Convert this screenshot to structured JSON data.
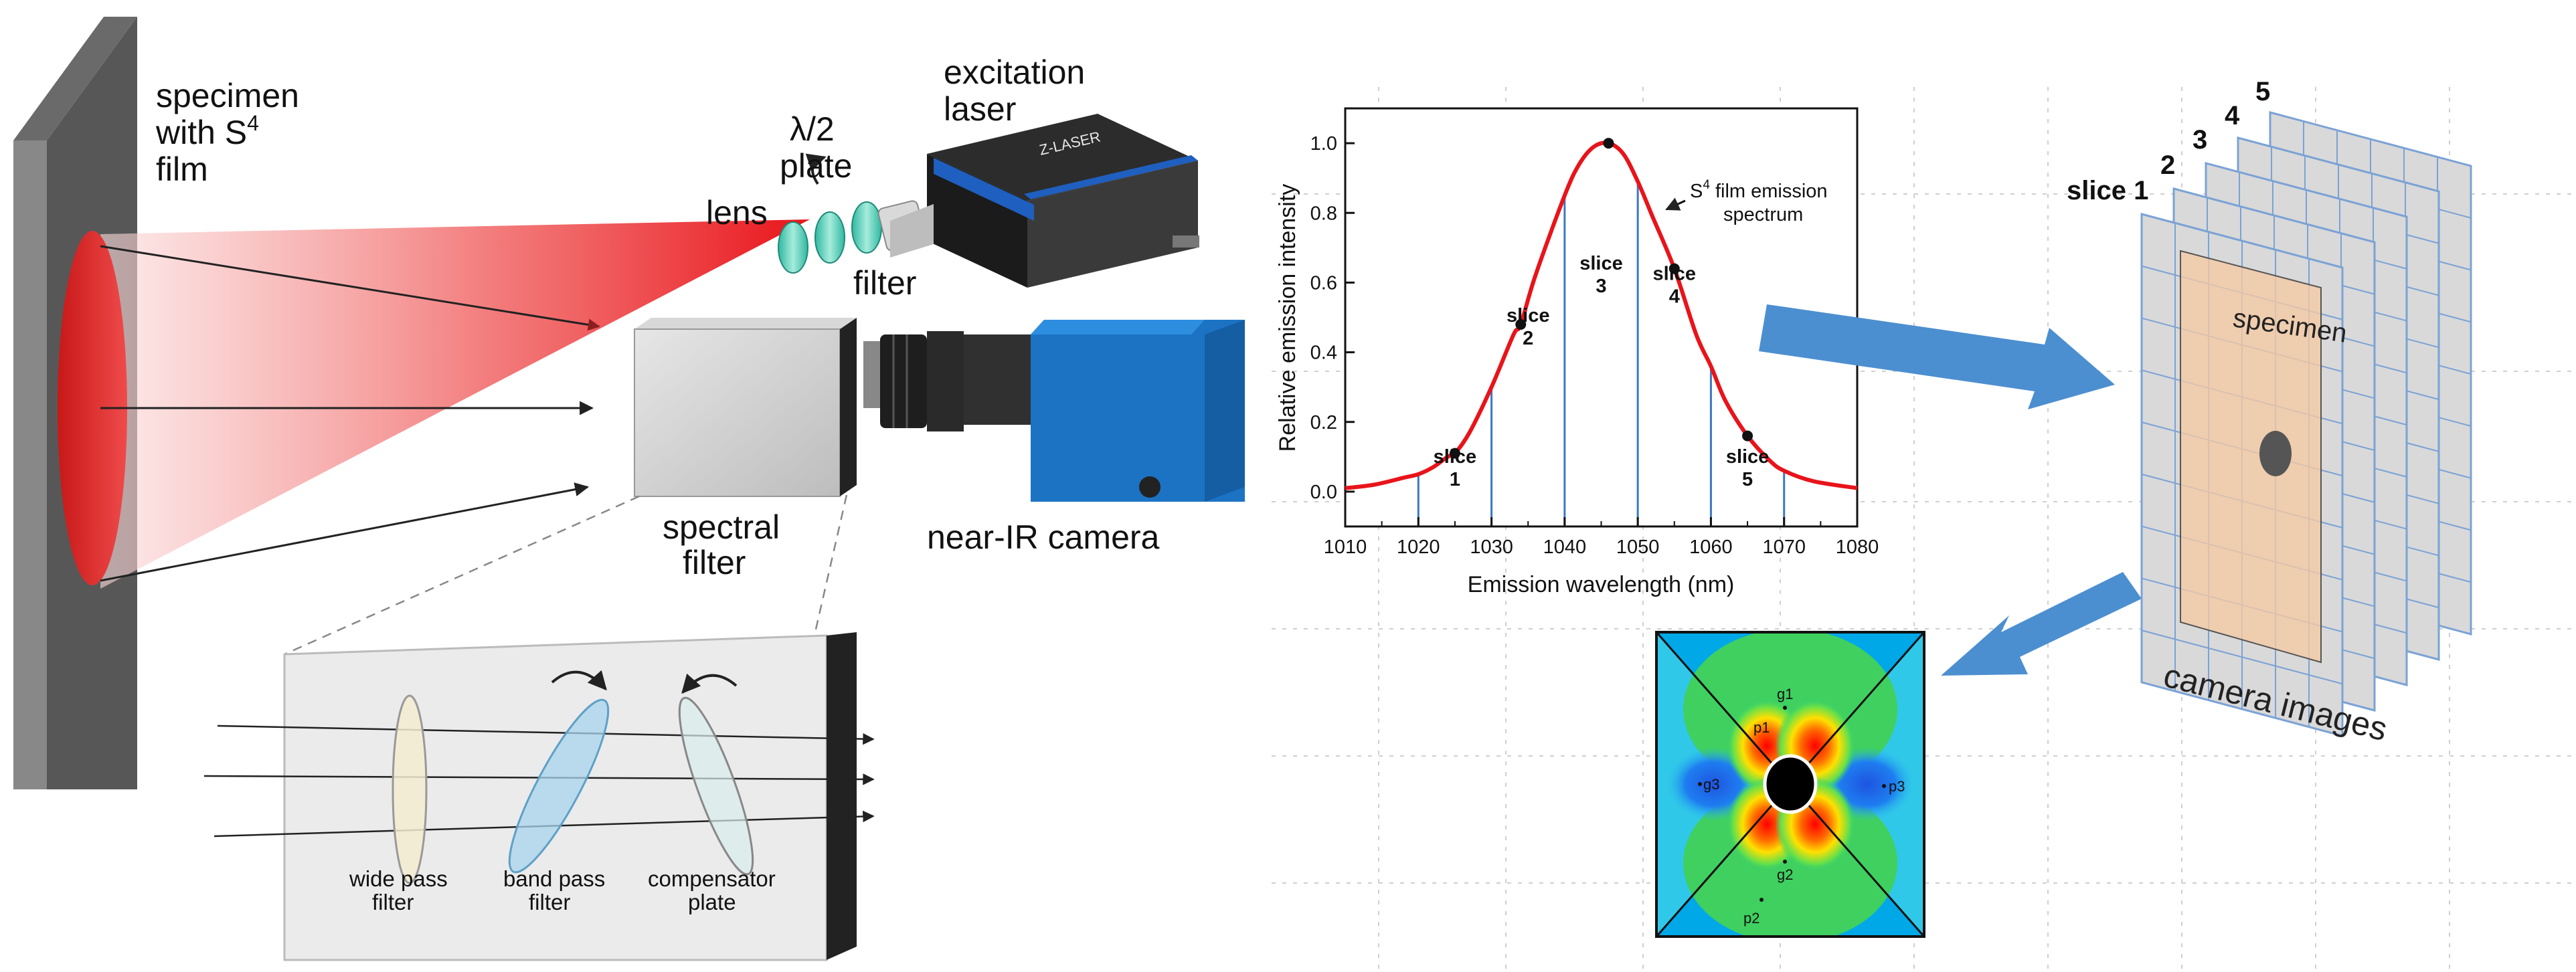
{
  "setup": {
    "specimen_line1": "specimen",
    "specimen_line2": "with S",
    "specimen_sup": "4",
    "specimen_line3": "film",
    "halfwave_line1": "λ/2",
    "halfwave_line2": "plate",
    "lens": "lens",
    "laser_line1": "excitation",
    "laser_line2": "laser",
    "filter": "filter",
    "spectral_line1": "spectral",
    "spectral_line2": "filter",
    "camera": "near-IR camera",
    "laser_brand": "Z-LASER"
  },
  "filter_box": {
    "wide_line1": "wide pass",
    "wide_line2": "filter",
    "band_line1": "band pass",
    "band_line2": "filter",
    "comp_line1": "compensator",
    "comp_line2": "plate"
  },
  "chart_data": {
    "type": "line",
    "title": "",
    "xlabel": "Emission wavelength (nm)",
    "ylabel": "Relative emission intensity",
    "xlim": [
      1010,
      1080
    ],
    "ylim": [
      -0.1,
      1.1
    ],
    "xticks": [
      1010,
      1020,
      1030,
      1040,
      1050,
      1060,
      1070,
      1080
    ],
    "yticks": [
      0.0,
      0.2,
      0.4,
      0.6,
      0.8,
      1.0
    ],
    "ytick_labels": [
      "0.0",
      "0.2",
      "0.4",
      "0.6",
      "0.8",
      "1.0"
    ],
    "series": [
      {
        "name": "S4 film emission spectrum",
        "color": "#e8141a",
        "x": [
          1010,
          1014,
          1018,
          1020,
          1022,
          1024,
          1025,
          1027,
          1030,
          1033,
          1034,
          1036,
          1040,
          1042,
          1044,
          1046,
          1048,
          1050,
          1052,
          1055,
          1058,
          1060,
          1062,
          1065,
          1068,
          1070,
          1074,
          1080
        ],
        "y": [
          0.01,
          0.02,
          0.04,
          0.05,
          0.07,
          0.1,
          0.11,
          0.17,
          0.3,
          0.45,
          0.48,
          0.62,
          0.85,
          0.94,
          0.99,
          1.0,
          0.97,
          0.89,
          0.79,
          0.64,
          0.45,
          0.36,
          0.26,
          0.16,
          0.09,
          0.06,
          0.03,
          0.01
        ]
      }
    ],
    "markers": [
      {
        "x": 1025,
        "y": 0.11
      },
      {
        "x": 1034,
        "y": 0.48
      },
      {
        "x": 1046,
        "y": 1.0
      },
      {
        "x": 1055,
        "y": 0.64
      },
      {
        "x": 1065,
        "y": 0.16
      }
    ],
    "slice_boundaries": [
      1020,
      1030,
      1040,
      1050,
      1060,
      1070
    ],
    "slices": [
      {
        "name": "slice",
        "num": "1",
        "x": 1025,
        "y": 0.02
      },
      {
        "name": "slice",
        "num": "2",
        "x": 1035,
        "y": 0.43
      },
      {
        "name": "slice",
        "num": "3",
        "x": 1045,
        "y": 1.0
      },
      {
        "name": "slice",
        "num": "4",
        "x": 1055,
        "y": 0.55
      },
      {
        "name": "slice",
        "num": "5",
        "x": 1065,
        "y": 0.02
      }
    ],
    "annotation_line1_pre": "S",
    "annotation_sup": "4",
    "annotation_line1_post": " film emission",
    "annotation_line2": "spectrum"
  },
  "stack": {
    "slice_label": "slice 1",
    "numbers": [
      "2",
      "3",
      "4",
      "5"
    ],
    "specimen_label": "specimen",
    "caption": "camera images"
  },
  "strain_map": {
    "gauges": [
      "g1",
      "g2",
      "g3"
    ],
    "points": [
      "p1",
      "p2",
      "p3"
    ]
  },
  "colors": {
    "laser": "#e8141a",
    "spectrum": "#e8141a",
    "slice_line": "#3b79c4",
    "camera_body": "#1c73c4",
    "arrow": "#4c8fd0"
  }
}
